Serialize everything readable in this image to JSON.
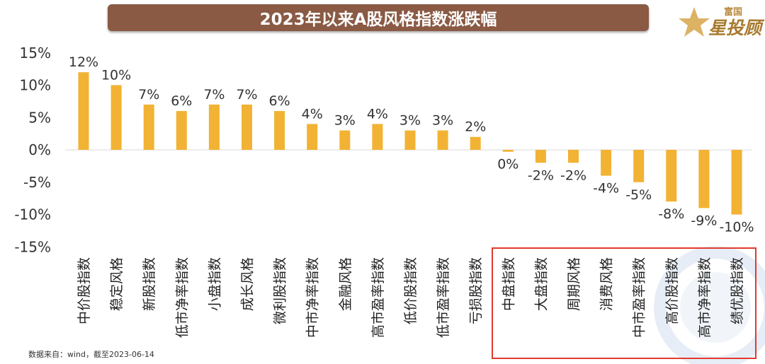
{
  "title": "2023年以来A股风格指数涨跌幅",
  "logo": {
    "top_text": "富国",
    "main_text": "星投顾"
  },
  "source_note": "数据来自：wind，截至2023-06-14",
  "colors": {
    "bar": "#f2b233",
    "title_bg": "#8a5a44",
    "highlight_box": "#e03b2e"
  },
  "chart_data": {
    "type": "bar",
    "title": "2023年以来A股风格指数涨跌幅",
    "categories": [
      "中价股指数",
      "稳定风格",
      "新股指数",
      "低市净率指数",
      "小盘指数",
      "成长风格",
      "微利股指数",
      "中市净率指数",
      "金融风格",
      "高市盈率指数",
      "低价股指数",
      "低市盈率指数",
      "亏损股指数",
      "中盘指数",
      "大盘指数",
      "周期风格",
      "消费风格",
      "中市盈率指数",
      "高价股指数",
      "高市净率指数",
      "绩优股指数"
    ],
    "values": [
      12,
      10,
      7,
      6,
      7,
      7,
      6,
      4,
      3,
      4,
      3,
      3,
      2,
      -0.3,
      -2,
      -2,
      -4,
      -5,
      -8,
      -9,
      -10
    ],
    "data_labels": [
      "12%",
      "10%",
      "7%",
      "6%",
      "7%",
      "7%",
      "6%",
      "4%",
      "3%",
      "4%",
      "3%",
      "3%",
      "2%",
      "0%",
      "-2%",
      "-2%",
      "-4%",
      "-5%",
      "-8%",
      "-9%",
      "-10%"
    ],
    "y_ticks": [
      "15%",
      "10%",
      "5%",
      "0%",
      "-5%",
      "-10%",
      "-15%"
    ],
    "ylim": [
      -15,
      15
    ],
    "grid": false,
    "legend": "none",
    "highlighted_categories": [
      "中盘指数",
      "大盘指数",
      "周期风格",
      "消费风格",
      "中市盈率指数",
      "高价股指数",
      "高市净率指数",
      "绩优股指数"
    ]
  }
}
